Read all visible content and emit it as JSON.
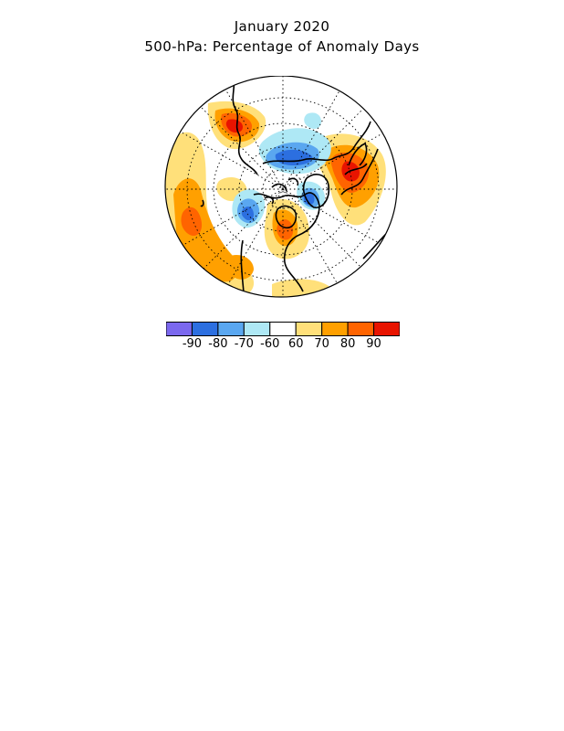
{
  "header": {
    "title": "January 2020",
    "subtitle": "500-hPa: Percentage of Anomaly Days"
  },
  "colorbar": {
    "colors": [
      "#7b68ee",
      "#2c6fe0",
      "#5aa7f0",
      "#aee8f5",
      "#ffffff",
      "#ffe07a",
      "#ffa000",
      "#ff6400",
      "#e81400"
    ],
    "labels": [
      "-90",
      "-80",
      "-70",
      "-60",
      "60",
      "70",
      "80",
      "90"
    ]
  },
  "map": {
    "projection": "north-polar-stereographic",
    "positive_anomaly_regions": [
      "northwest North America",
      "Scandinavia and northwest Russia",
      "central and eastern North Pacific",
      "Greenland and Baffin Bay",
      "subtropical Atlantic"
    ],
    "negative_anomaly_regions": [
      "Alaska and Bering Sea",
      "Barents and Kara seas",
      "northeast Canada and Hudson Bay",
      "North Atlantic near Iceland"
    ]
  }
}
